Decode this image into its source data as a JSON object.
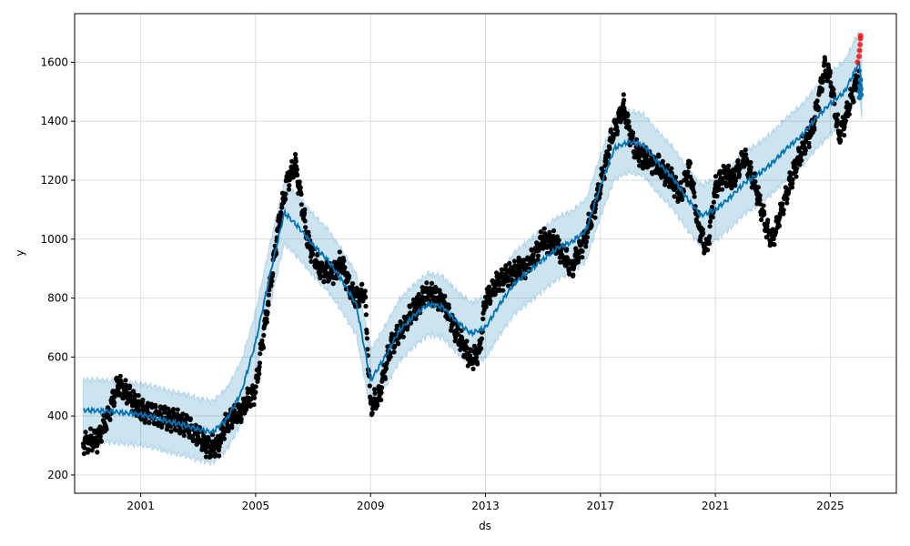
{
  "chart_data": {
    "type": "line",
    "xlabel": "ds",
    "ylabel": "y",
    "xlim": [
      1998.7,
      2027.3
    ],
    "ylim": [
      138,
      1765
    ],
    "grid": true,
    "x_ticks": [
      2001,
      2005,
      2009,
      2013,
      2017,
      2021,
      2025
    ],
    "x_tick_labels": [
      "2001",
      "2005",
      "2009",
      "2013",
      "2017",
      "2021",
      "2025"
    ],
    "y_ticks": [
      200,
      400,
      600,
      800,
      1000,
      1200,
      1400,
      1600
    ],
    "y_tick_labels": [
      "200",
      "400",
      "600",
      "800",
      "1000",
      "1200",
      "1400",
      "1600"
    ],
    "colors": {
      "observed": "#000000",
      "forecast": "#0072B2",
      "interval": "#0072B2",
      "highlight": "#ff0000",
      "grid": "#dddddd"
    },
    "observed_anchor": {
      "x": [
        1999.0,
        1999.5,
        1999.8,
        2000.2,
        2000.6,
        2001.0,
        2001.6,
        2002.0,
        2002.6,
        2003.0,
        2003.4,
        2003.7,
        2004.0,
        2004.5,
        2005.0,
        2005.4,
        2005.8,
        2006.1,
        2006.4,
        2006.8,
        2007.2,
        2007.6,
        2008.0,
        2008.4,
        2008.8,
        2009.0,
        2009.3,
        2009.7,
        2010.0,
        2010.5,
        2011.0,
        2011.5,
        2012.0,
        2012.5,
        2012.8,
        2013.0,
        2013.5,
        2014.0,
        2014.5,
        2015.0,
        2015.5,
        2016.0,
        2016.5,
        2017.0,
        2017.4,
        2017.8,
        2018.2,
        2018.6,
        2019.0,
        2019.4,
        2019.8,
        2020.1,
        2020.4,
        2020.7,
        2021.0,
        2021.3,
        2021.6,
        2022.0,
        2022.4,
        2022.8,
        2023.0,
        2023.4,
        2023.8,
        2024.1,
        2024.4,
        2024.8,
        2025.0,
        2025.3,
        2025.5,
        2025.8,
        2026.0
      ],
      "y": [
        310,
        320,
        380,
        510,
        470,
        420,
        400,
        390,
        370,
        330,
        290,
        300,
        380,
        420,
        490,
        760,
        1050,
        1200,
        1250,
        1000,
        900,
        880,
        920,
        800,
        820,
        430,
        470,
        640,
        680,
        760,
        820,
        790,
        680,
        590,
        620,
        800,
        860,
        890,
        910,
        1000,
        980,
        900,
        1010,
        1180,
        1350,
        1450,
        1300,
        1270,
        1250,
        1210,
        1150,
        1250,
        1050,
        960,
        1170,
        1220,
        1200,
        1280,
        1180,
        1030,
        1000,
        1130,
        1250,
        1320,
        1380,
        1580,
        1550,
        1350,
        1400,
        1500,
        1560
      ]
    },
    "trend_anchor": {
      "x": [
        1999.0,
        1999.5,
        2000.0,
        2000.5,
        2001.0,
        2001.5,
        2002.0,
        2002.5,
        2003.0,
        2003.5,
        2004.0,
        2004.5,
        2005.0,
        2005.5,
        2006.0,
        2006.5,
        2007.0,
        2007.5,
        2008.0,
        2008.5,
        2009.0,
        2009.5,
        2010.0,
        2010.5,
        2011.0,
        2011.5,
        2012.0,
        2012.5,
        2013.0,
        2013.5,
        2014.0,
        2014.5,
        2015.0,
        2015.5,
        2016.0,
        2016.5,
        2017.0,
        2017.5,
        2018.0,
        2018.5,
        2019.0,
        2019.5,
        2020.0,
        2020.5,
        2021.0,
        2021.5,
        2022.0,
        2022.5,
        2023.0,
        2023.5,
        2024.0,
        2024.5,
        2025.0,
        2025.5,
        2025.8,
        2026.0,
        2026.1
      ],
      "y": [
        420,
        418,
        415,
        410,
        405,
        395,
        380,
        370,
        355,
        345,
        390,
        480,
        650,
        880,
        1090,
        1040,
        980,
        930,
        860,
        780,
        520,
        600,
        690,
        740,
        780,
        770,
        720,
        680,
        700,
        780,
        850,
        890,
        930,
        970,
        990,
        1030,
        1180,
        1310,
        1330,
        1320,
        1260,
        1210,
        1140,
        1080,
        1100,
        1140,
        1190,
        1220,
        1260,
        1310,
        1350,
        1410,
        1460,
        1500,
        1560,
        1600,
        1520
      ],
      "band_halfwidth": 105
    },
    "highlight_points": {
      "x": [
        2025.95,
        2026.0,
        2026.02,
        2026.04,
        2026.05,
        2026.06
      ],
      "y": [
        1600,
        1620,
        1640,
        1660,
        1680,
        1690
      ]
    },
    "forecast_points": {
      "x": [
        2026.02,
        2026.03,
        2026.04,
        2026.05,
        2026.06,
        2026.07
      ],
      "y": [
        1480,
        1500,
        1520,
        1540,
        1510,
        1490
      ]
    }
  }
}
